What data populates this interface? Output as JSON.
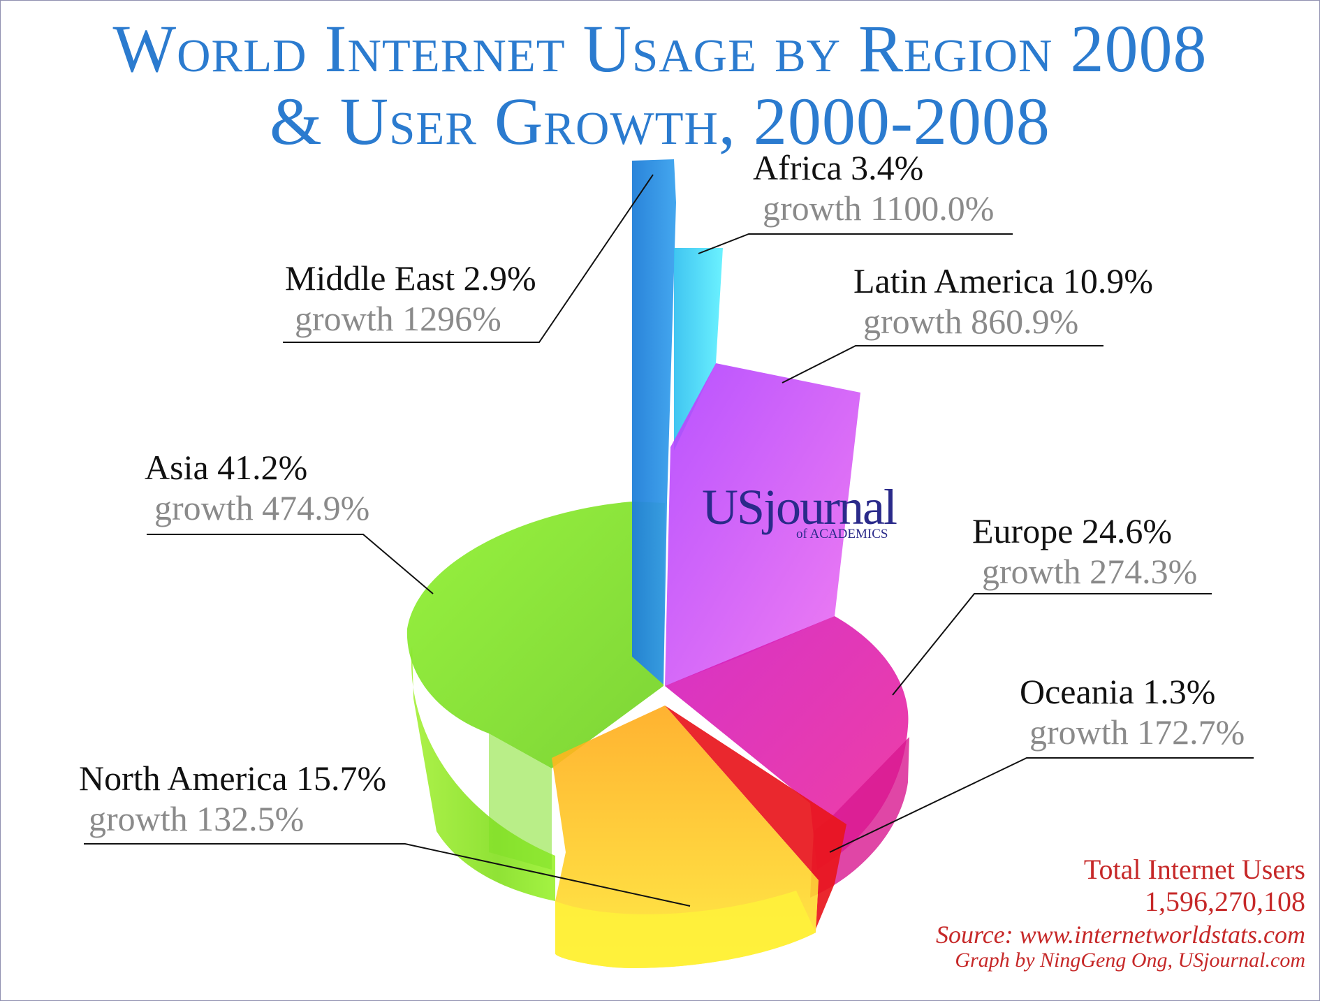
{
  "title_line1": "World Internet Usage by Region 2008",
  "title_line2": "& User Growth, 2000-2008",
  "logo_main": "USjournal",
  "logo_sub": "of ACADEMICS",
  "total_label": "Total Internet Users",
  "total_value": "1,596,270,108",
  "source": "Source: www.internetworldstats.com",
  "credit": "Graph by NingGeng Ong, USjournal.com",
  "chart_data": {
    "type": "pie",
    "title": "World Internet Usage by Region 2008 & User Growth, 2000-2008",
    "categories": [
      "Asia",
      "Europe",
      "North America",
      "Latin America",
      "Africa",
      "Middle East",
      "Oceania"
    ],
    "share_pct": [
      41.2,
      24.6,
      15.7,
      10.9,
      3.4,
      2.9,
      1.3
    ],
    "growth_pct": [
      474.9,
      274.3,
      132.5,
      860.9,
      1100.0,
      1296,
      172.7
    ],
    "labels": [
      {
        "name": "Africa 3.4%",
        "growth": "growth 1100.0%"
      },
      {
        "name": "Middle East 2.9%",
        "growth": "growth 1296%"
      },
      {
        "name": "Latin America 10.9%",
        "growth": "growth 860.9%"
      },
      {
        "name": "Asia 41.2%",
        "growth": "growth 474.9%"
      },
      {
        "name": "Europe 24.6%",
        "growth": "growth 274.3%"
      },
      {
        "name": "Oceania 1.3%",
        "growth": "growth 172.7%"
      },
      {
        "name": "North America 15.7%",
        "growth": "growth 132.5%"
      }
    ],
    "colors": {
      "Asia": "#8ee62a",
      "Europe": "#e0209a",
      "North America": "#ffc21a",
      "Latin America": "#d040ff",
      "Africa": "#40d8f0",
      "Middle East": "#2d8fe0",
      "Oceania": "#e01818"
    }
  }
}
